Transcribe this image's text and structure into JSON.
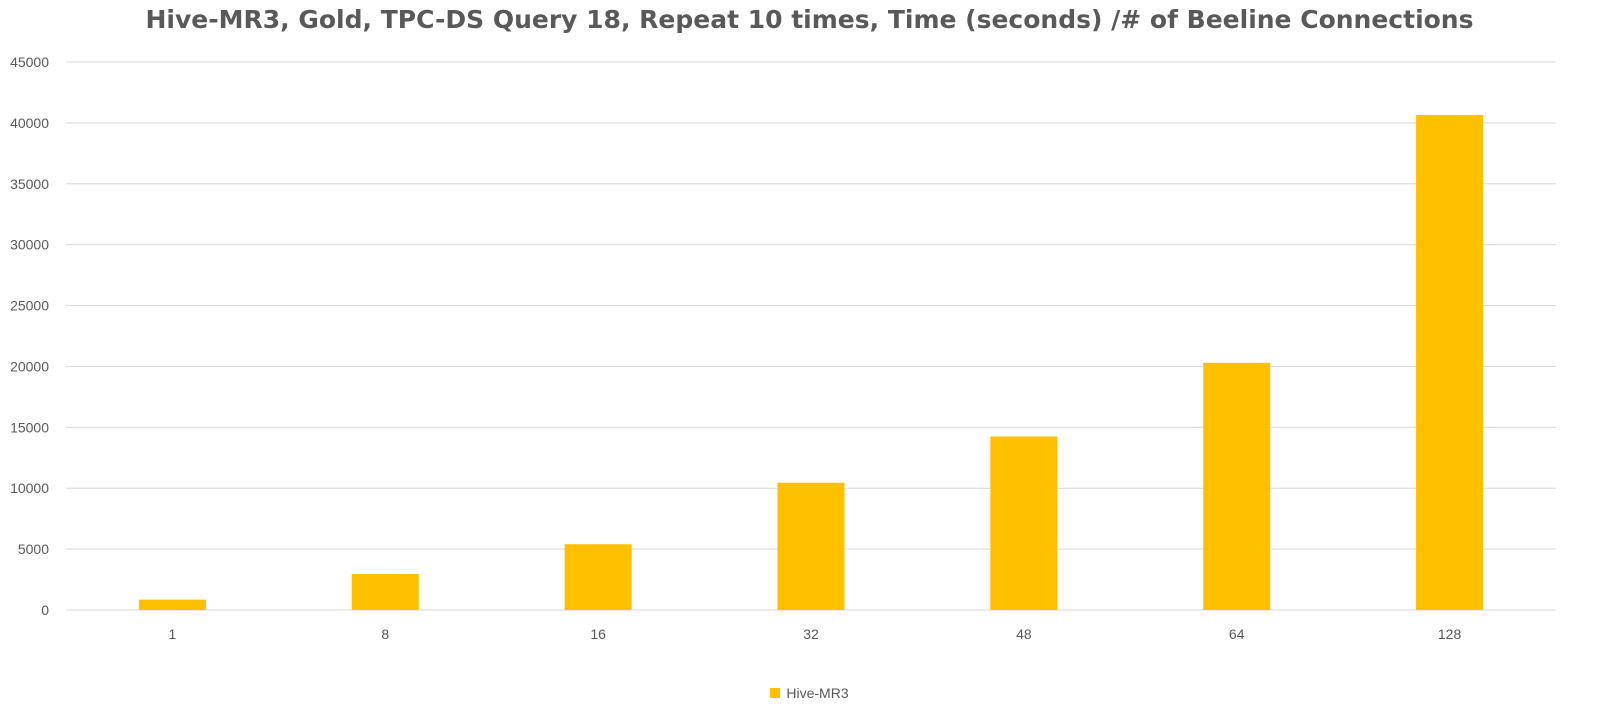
{
  "chart_data": {
    "type": "bar",
    "title": "Hive-MR3, Gold, TPC-DS Query 18, Repeat 10 times, Time (seconds) /# of Beeline Connections",
    "categories": [
      "1",
      "8",
      "16",
      "32",
      "48",
      "64",
      "128"
    ],
    "series": [
      {
        "name": "Hive-MR3",
        "color": "#FFC000",
        "values": [
          850,
          2950,
          5400,
          10450,
          14250,
          20300,
          40650
        ]
      }
    ],
    "ylim": [
      0,
      45000
    ],
    "yticks": [
      0,
      5000,
      10000,
      15000,
      20000,
      25000,
      30000,
      35000,
      40000,
      45000
    ],
    "grid": true,
    "legend_position": "bottom",
    "xlabel": "",
    "ylabel": ""
  },
  "style": {
    "grid_color": "#D9D9D9",
    "text_color": "#595959"
  }
}
